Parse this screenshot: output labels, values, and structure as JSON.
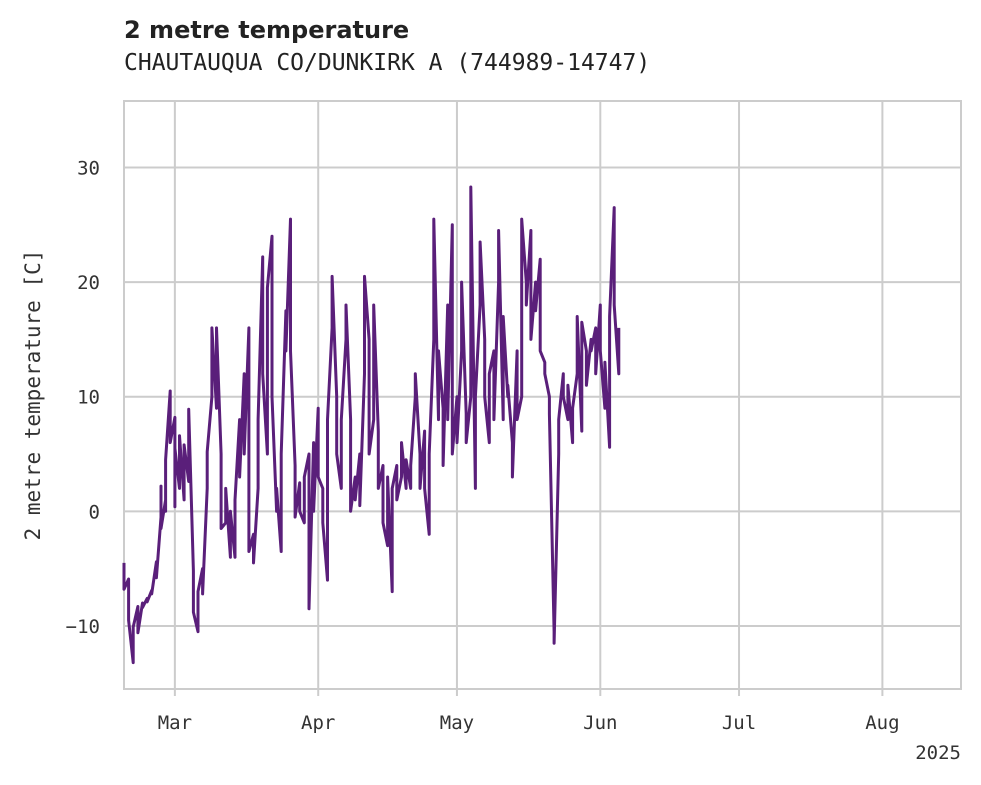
{
  "chart_data": {
    "type": "line",
    "title": "2 metre temperature",
    "subtitle": "CHAUTAUQUA CO/DUNKIRK A (744989-14747)",
    "xlabel": "",
    "ylabel": "2 metre temperature [C]",
    "year_label": "2025",
    "xlim": [
      "2025-02-18",
      "2025-08-17"
    ],
    "ylim": [
      -15.5,
      35.8
    ],
    "grid": true,
    "x_ticks": [
      {
        "date": "2025-03-01",
        "label": "Mar"
      },
      {
        "date": "2025-04-01",
        "label": "Apr"
      },
      {
        "date": "2025-05-01",
        "label": "May"
      },
      {
        "date": "2025-06-01",
        "label": "Jun"
      },
      {
        "date": "2025-07-01",
        "label": "Jul"
      },
      {
        "date": "2025-08-01",
        "label": "Aug"
      }
    ],
    "y_ticks": [
      -10,
      0,
      10,
      20,
      30
    ],
    "series": [
      {
        "color": "#5a1f7a",
        "points": [
          [
            "2025-02-18",
            -4.5
          ],
          [
            "2025-02-18",
            -6.8
          ],
          [
            "2025-02-19",
            -5.9
          ],
          [
            "2025-02-19",
            -9.5
          ],
          [
            "2025-02-20",
            -13.2
          ],
          [
            "2025-02-20",
            -10.1
          ],
          [
            "2025-02-21",
            -8.3
          ],
          [
            "2025-02-21",
            -10.6
          ],
          [
            "2025-02-22",
            -8.0
          ],
          [
            "2025-02-22",
            -8.4
          ],
          [
            "2025-02-23",
            -7.6
          ],
          [
            "2025-02-23",
            -7.9
          ],
          [
            "2025-02-24",
            -6.9
          ],
          [
            "2025-02-24",
            -7.2
          ],
          [
            "2025-02-25",
            -4.4
          ],
          [
            "2025-02-25",
            -5.8
          ],
          [
            "2025-02-26",
            -0.5
          ],
          [
            "2025-02-26",
            2.2
          ],
          [
            "2025-02-26",
            -1.5
          ],
          [
            "2025-02-27",
            1.0
          ],
          [
            "2025-02-27",
            0.0
          ],
          [
            "2025-02-27",
            4.5
          ],
          [
            "2025-02-28",
            10.5
          ],
          [
            "2025-02-28",
            6.0
          ],
          [
            "2025-03-01",
            8.2
          ],
          [
            "2025-03-01",
            0.4
          ],
          [
            "2025-03-01",
            5.5
          ],
          [
            "2025-03-02",
            2.0
          ],
          [
            "2025-03-02",
            6.6
          ],
          [
            "2025-03-03",
            1.0
          ],
          [
            "2025-03-03",
            5.8
          ],
          [
            "2025-03-04",
            2.6
          ],
          [
            "2025-03-04",
            8.9
          ],
          [
            "2025-03-05",
            -5.2
          ],
          [
            "2025-03-05",
            -8.8
          ],
          [
            "2025-03-06",
            -10.5
          ],
          [
            "2025-03-06",
            -7.0
          ],
          [
            "2025-03-07",
            -5.0
          ],
          [
            "2025-03-07",
            -7.2
          ],
          [
            "2025-03-08",
            2.0
          ],
          [
            "2025-03-08",
            5.2
          ],
          [
            "2025-03-09",
            10.0
          ],
          [
            "2025-03-09",
            16.0
          ],
          [
            "2025-03-10",
            9.0
          ],
          [
            "2025-03-10",
            16.0
          ],
          [
            "2025-03-11",
            5.0
          ],
          [
            "2025-03-11",
            -1.5
          ],
          [
            "2025-03-12",
            -1.0
          ],
          [
            "2025-03-12",
            2.0
          ],
          [
            "2025-03-13",
            -4.0
          ],
          [
            "2025-03-13",
            0.0
          ],
          [
            "2025-03-14",
            -4.0
          ],
          [
            "2025-03-14",
            1.0
          ],
          [
            "2025-03-15",
            8.0
          ],
          [
            "2025-03-15",
            3.0
          ],
          [
            "2025-03-16",
            12.0
          ],
          [
            "2025-03-16",
            5.0
          ],
          [
            "2025-03-17",
            16.0
          ],
          [
            "2025-03-17",
            -3.5
          ],
          [
            "2025-03-18",
            -2.0
          ],
          [
            "2025-03-18",
            -4.5
          ],
          [
            "2025-03-19",
            2.0
          ],
          [
            "2025-03-19",
            8.0
          ],
          [
            "2025-03-20",
            22.2
          ],
          [
            "2025-03-20",
            12.0
          ],
          [
            "2025-03-21",
            5.0
          ],
          [
            "2025-03-21",
            19.5
          ],
          [
            "2025-03-22",
            24.0
          ],
          [
            "2025-03-22",
            10.0
          ],
          [
            "2025-03-23",
            0.0
          ],
          [
            "2025-03-23",
            2.0
          ],
          [
            "2025-03-24",
            -3.5
          ],
          [
            "2025-03-24",
            5.0
          ],
          [
            "2025-03-25",
            17.5
          ],
          [
            "2025-03-25",
            14.0
          ],
          [
            "2025-03-26",
            25.5
          ],
          [
            "2025-03-26",
            14.0
          ],
          [
            "2025-03-27",
            4.0
          ],
          [
            "2025-03-27",
            -0.5
          ],
          [
            "2025-03-28",
            2.5
          ],
          [
            "2025-03-28",
            0.0
          ],
          [
            "2025-03-29",
            -1.0
          ],
          [
            "2025-03-29",
            3.0
          ],
          [
            "2025-03-30",
            5.0
          ],
          [
            "2025-03-30",
            -8.5
          ],
          [
            "2025-03-31",
            6.0
          ],
          [
            "2025-03-31",
            0.0
          ],
          [
            "2025-04-01",
            9.0
          ],
          [
            "2025-04-01",
            3.0
          ],
          [
            "2025-04-02",
            2.0
          ],
          [
            "2025-04-02",
            -1.0
          ],
          [
            "2025-04-03",
            -6.0
          ],
          [
            "2025-04-03",
            8.0
          ],
          [
            "2025-04-04",
            16.0
          ],
          [
            "2025-04-04",
            20.5
          ],
          [
            "2025-04-05",
            10.0
          ],
          [
            "2025-04-05",
            5.0
          ],
          [
            "2025-04-06",
            2.0
          ],
          [
            "2025-04-06",
            8.0
          ],
          [
            "2025-04-07",
            15.0
          ],
          [
            "2025-04-07",
            18.0
          ],
          [
            "2025-04-08",
            8.0
          ],
          [
            "2025-04-08",
            0.0
          ],
          [
            "2025-04-09",
            3.0
          ],
          [
            "2025-04-09",
            1.0
          ],
          [
            "2025-04-10",
            5.0
          ],
          [
            "2025-04-10",
            0.5
          ],
          [
            "2025-04-11",
            12.0
          ],
          [
            "2025-04-11",
            20.5
          ],
          [
            "2025-04-12",
            15.0
          ],
          [
            "2025-04-12",
            5.0
          ],
          [
            "2025-04-13",
            8.0
          ],
          [
            "2025-04-13",
            18.0
          ],
          [
            "2025-04-14",
            7.0
          ],
          [
            "2025-04-14",
            2.0
          ],
          [
            "2025-04-15",
            4.0
          ],
          [
            "2025-04-15",
            -1.0
          ],
          [
            "2025-04-16",
            -3.0
          ],
          [
            "2025-04-16",
            3.0
          ],
          [
            "2025-04-17",
            -7.0
          ],
          [
            "2025-04-17",
            2.0
          ],
          [
            "2025-04-18",
            4.0
          ],
          [
            "2025-04-18",
            1.0
          ],
          [
            "2025-04-19",
            3.0
          ],
          [
            "2025-04-19",
            6.0
          ],
          [
            "2025-04-20",
            2.0
          ],
          [
            "2025-04-20",
            4.5
          ],
          [
            "2025-04-21",
            2.0
          ],
          [
            "2025-04-21",
            4.0
          ],
          [
            "2025-04-22",
            10.0
          ],
          [
            "2025-04-22",
            12.0
          ],
          [
            "2025-04-23",
            5.0
          ],
          [
            "2025-04-23",
            2.0
          ],
          [
            "2025-04-24",
            7.0
          ],
          [
            "2025-04-24",
            2.0
          ],
          [
            "2025-04-25",
            -2.0
          ],
          [
            "2025-04-25",
            5.0
          ],
          [
            "2025-04-26",
            15.0
          ],
          [
            "2025-04-26",
            25.5
          ],
          [
            "2025-04-27",
            8.0
          ],
          [
            "2025-04-27",
            14.0
          ],
          [
            "2025-04-28",
            9.0
          ],
          [
            "2025-04-28",
            4.0
          ],
          [
            "2025-04-29",
            18.0
          ],
          [
            "2025-04-29",
            8.0
          ],
          [
            "2025-04-30",
            25.0
          ],
          [
            "2025-04-30",
            5.0
          ],
          [
            "2025-05-01",
            10.0
          ],
          [
            "2025-05-01",
            6.0
          ],
          [
            "2025-05-02",
            14.0
          ],
          [
            "2025-05-02",
            20.0
          ],
          [
            "2025-05-03",
            8.5
          ],
          [
            "2025-05-03",
            6.0
          ],
          [
            "2025-05-04",
            10.0
          ],
          [
            "2025-05-04",
            28.3
          ],
          [
            "2025-05-05",
            2.0
          ],
          [
            "2025-05-05",
            10.0
          ],
          [
            "2025-05-06",
            18.0
          ],
          [
            "2025-05-06",
            23.5
          ],
          [
            "2025-05-07",
            15.0
          ],
          [
            "2025-05-07",
            10.0
          ],
          [
            "2025-05-08",
            6.0
          ],
          [
            "2025-05-08",
            12.0
          ],
          [
            "2025-05-09",
            14.0
          ],
          [
            "2025-05-09",
            8.0
          ],
          [
            "2025-05-10",
            20.0
          ],
          [
            "2025-05-10",
            24.5
          ],
          [
            "2025-05-11",
            8.0
          ],
          [
            "2025-05-11",
            17.0
          ],
          [
            "2025-05-12",
            10.0
          ],
          [
            "2025-05-12",
            11.0
          ],
          [
            "2025-05-13",
            6.0
          ],
          [
            "2025-05-13",
            3.0
          ],
          [
            "2025-05-14",
            14.0
          ],
          [
            "2025-05-14",
            8.0
          ],
          [
            "2025-05-15",
            10.0
          ],
          [
            "2025-05-15",
            25.5
          ],
          [
            "2025-05-16",
            20.0
          ],
          [
            "2025-05-16",
            18.0
          ],
          [
            "2025-05-17",
            24.5
          ],
          [
            "2025-05-17",
            15.0
          ],
          [
            "2025-05-18",
            20.0
          ],
          [
            "2025-05-18",
            17.5
          ],
          [
            "2025-05-19",
            22.0
          ],
          [
            "2025-05-19",
            14.0
          ],
          [
            "2025-05-20",
            13.0
          ],
          [
            "2025-05-20",
            12.0
          ],
          [
            "2025-05-21",
            10.0
          ],
          [
            "2025-05-21",
            8.5
          ],
          [
            "2025-05-22",
            -10.5
          ],
          [
            "2025-05-22",
            -11.5
          ],
          [
            "2025-05-23",
            5.0
          ],
          [
            "2025-05-23",
            8.0
          ],
          [
            "2025-05-24",
            12.0
          ],
          [
            "2025-05-24",
            10.0
          ],
          [
            "2025-05-25",
            8.0
          ],
          [
            "2025-05-25",
            11.0
          ],
          [
            "2025-05-26",
            6.0
          ],
          [
            "2025-05-26",
            9.0
          ],
          [
            "2025-05-27",
            12.0
          ],
          [
            "2025-05-27",
            17.0
          ],
          [
            "2025-05-28",
            7.0
          ],
          [
            "2025-05-28",
            16.5
          ],
          [
            "2025-05-29",
            14.0
          ],
          [
            "2025-05-29",
            11.0
          ],
          [
            "2025-05-30",
            15.0
          ],
          [
            "2025-05-30",
            14.0
          ],
          [
            "2025-05-31",
            16.0
          ],
          [
            "2025-05-31",
            12.0
          ],
          [
            "2025-06-01",
            18.0
          ],
          [
            "2025-06-01",
            14.0
          ],
          [
            "2025-06-02",
            9.0
          ],
          [
            "2025-06-02",
            13.0
          ],
          [
            "2025-06-03",
            5.6
          ],
          [
            "2025-06-03",
            17.0
          ],
          [
            "2025-06-04",
            26.5
          ],
          [
            "2025-06-04",
            18.0
          ],
          [
            "2025-06-05",
            12.0
          ],
          [
            "2025-06-05",
            16.0
          ]
        ]
      }
    ]
  }
}
